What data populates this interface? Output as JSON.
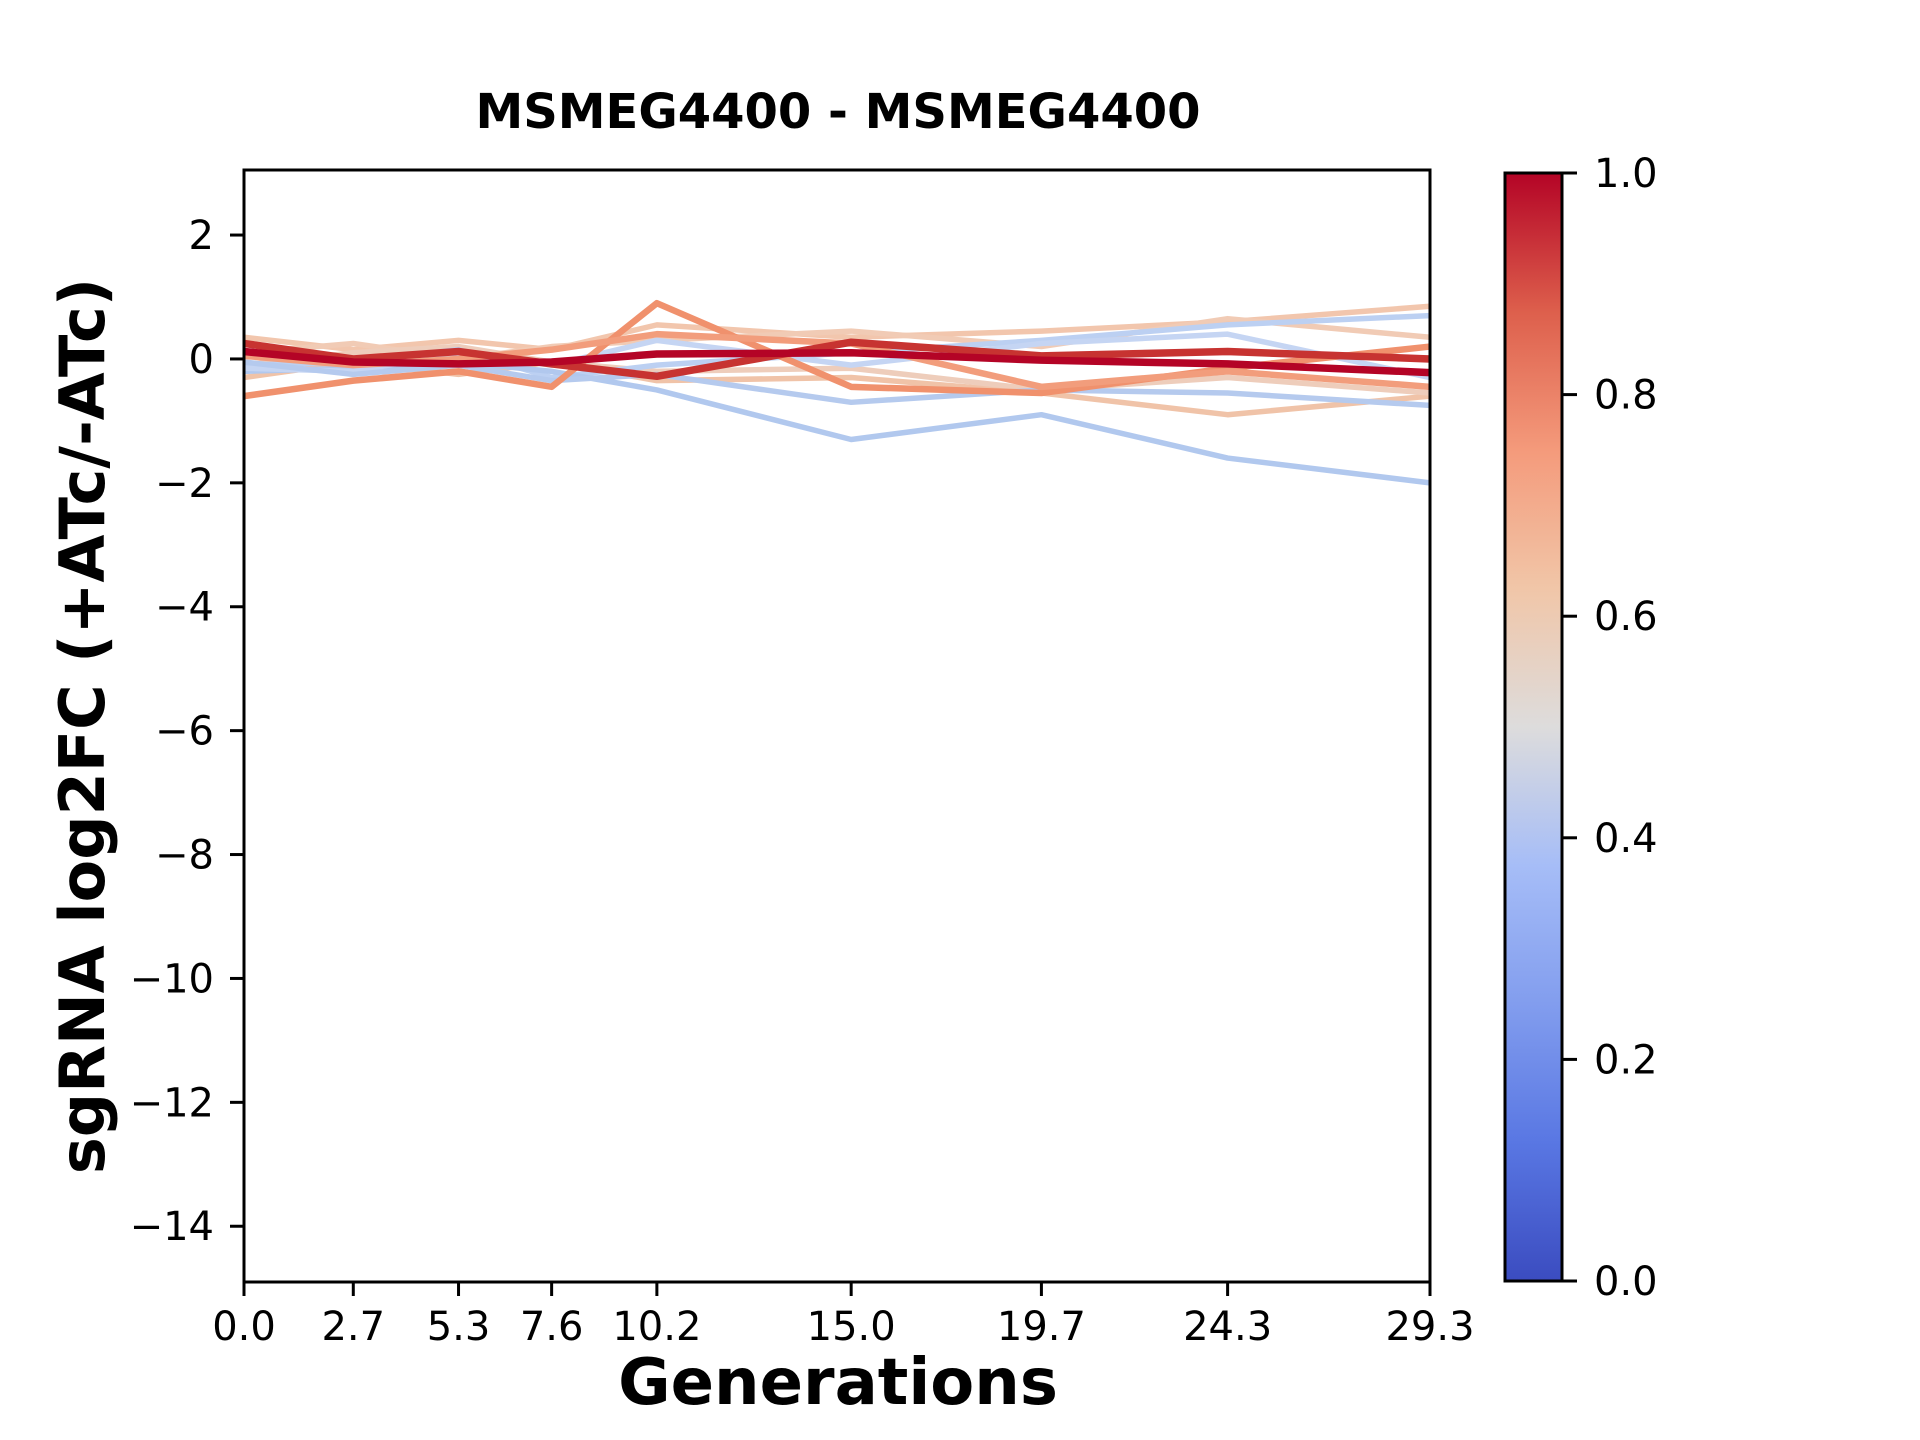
{
  "title": "MSMEG4400 - MSMEG4400",
  "chart_data": {
    "type": "line",
    "title": "MSMEG4400 - MSMEG4400",
    "xlabel": "Generations",
    "ylabel": "sgRNA log2FC (+ATc/-ATc)",
    "x": [
      0.0,
      2.7,
      5.3,
      7.6,
      10.2,
      15.0,
      19.7,
      24.3,
      29.3
    ],
    "xtick_labels": [
      "0.0",
      "2.7",
      "5.3",
      "7.6",
      "10.2",
      "15.0",
      "19.7",
      "24.3",
      "29.3"
    ],
    "ytick_values": [
      2,
      0,
      -2,
      -4,
      -6,
      -8,
      -10,
      -12,
      -14
    ],
    "ytick_labels": [
      "2",
      "0",
      "−2",
      "−4",
      "−6",
      "−8",
      "−10",
      "−12",
      "−14"
    ],
    "xlim": [
      0,
      29.3
    ],
    "ylim": [
      -14.9,
      3.05
    ],
    "grid": false,
    "legend": "none",
    "axis_color": "#000000",
    "series": [
      {
        "id": "line-01",
        "cmap_value": 0.62,
        "color": "#f2c6ad",
        "linewidth": 5.5,
        "values": [
          0.35,
          0.15,
          0.3,
          0.15,
          0.55,
          0.35,
          0.45,
          0.6,
          0.85
        ]
      },
      {
        "id": "line-02",
        "cmap_value": 0.6,
        "color": "#f1cbb5",
        "linewidth": 5.5,
        "values": [
          0.1,
          0.25,
          0.0,
          0.2,
          0.3,
          0.45,
          0.2,
          0.65,
          0.35
        ]
      },
      {
        "id": "line-03",
        "cmap_value": 0.63,
        "color": "#f0c3a8",
        "linewidth": 5.5,
        "values": [
          -0.3,
          -0.05,
          -0.25,
          -0.05,
          -0.35,
          -0.3,
          -0.55,
          -0.9,
          -0.6
        ]
      },
      {
        "id": "line-04",
        "cmap_value": 0.58,
        "color": "#eecdbb",
        "linewidth": 5.5,
        "values": [
          -0.1,
          0.1,
          0.2,
          -0.05,
          -0.2,
          -0.15,
          -0.5,
          -0.3,
          -0.55
        ]
      },
      {
        "id": "line-05",
        "cmap_value": 0.43,
        "color": "#bcd0f2",
        "linewidth": 5.5,
        "values": [
          -0.1,
          -0.05,
          0.15,
          -0.3,
          -0.1,
          0.1,
          0.3,
          0.55,
          0.7
        ]
      },
      {
        "id": "line-06",
        "cmap_value": 0.4,
        "color": "#b1c8ee",
        "linewidth": 5.5,
        "values": [
          -0.2,
          -0.15,
          -0.05,
          -0.2,
          -0.5,
          -1.3,
          -0.9,
          -1.6,
          -2.0
        ]
      },
      {
        "id": "line-07",
        "cmap_value": 0.45,
        "color": "#c5d5f3",
        "linewidth": 5.5,
        "values": [
          -0.15,
          -0.2,
          0.1,
          -0.1,
          0.3,
          -0.1,
          0.25,
          0.4,
          -0.3
        ]
      },
      {
        "id": "line-08",
        "cmap_value": 0.41,
        "color": "#b5caee",
        "linewidth": 5.5,
        "values": [
          -0.05,
          -0.25,
          -0.1,
          -0.35,
          -0.25,
          -0.7,
          -0.5,
          -0.55,
          -0.75
        ]
      },
      {
        "id": "line-09",
        "cmap_value": 0.78,
        "color": "#f0916d",
        "linewidth": 6.5,
        "values": [
          -0.6,
          -0.35,
          -0.2,
          -0.45,
          0.9,
          -0.45,
          -0.55,
          -0.15,
          0.2
        ]
      },
      {
        "id": "line-10",
        "cmap_value": 0.75,
        "color": "#f29d7c",
        "linewidth": 6.5,
        "values": [
          0.05,
          -0.1,
          0.0,
          0.15,
          0.4,
          0.25,
          -0.45,
          -0.2,
          -0.45
        ]
      },
      {
        "id": "line-11",
        "cmap_value": 0.93,
        "color": "#c73331",
        "linewidth": 7.5,
        "values": [
          0.25,
          0.0,
          0.12,
          -0.08,
          -0.28,
          0.27,
          0.05,
          0.12,
          0.0
        ]
      },
      {
        "id": "line-12",
        "cmap_value": 1.0,
        "color": "#b40426",
        "linewidth": 7.5,
        "values": [
          0.12,
          -0.05,
          -0.08,
          -0.05,
          0.08,
          0.1,
          -0.02,
          -0.08,
          -0.22
        ]
      }
    ],
    "colorbar": {
      "cmap": "coolwarm",
      "range": [
        0.0,
        1.0
      ],
      "tick_values": [
        1.0,
        0.8,
        0.6,
        0.4,
        0.2,
        0.0
      ],
      "tick_labels": [
        "1.0",
        "0.8",
        "0.6",
        "0.4",
        "0.2",
        "0.0"
      ],
      "gradient_stops": [
        [
          "0.000",
          "#3b4cc0"
        ],
        [
          "0.125",
          "#5977e3"
        ],
        [
          "0.250",
          "#829dee"
        ],
        [
          "0.375",
          "#a6bdf7"
        ],
        [
          "0.500",
          "#dddcdc"
        ],
        [
          "0.625",
          "#f1c6a8"
        ],
        [
          "0.750",
          "#f49a7b"
        ],
        [
          "0.875",
          "#dd5f4c"
        ],
        [
          "1.000",
          "#b40426"
        ]
      ]
    }
  }
}
